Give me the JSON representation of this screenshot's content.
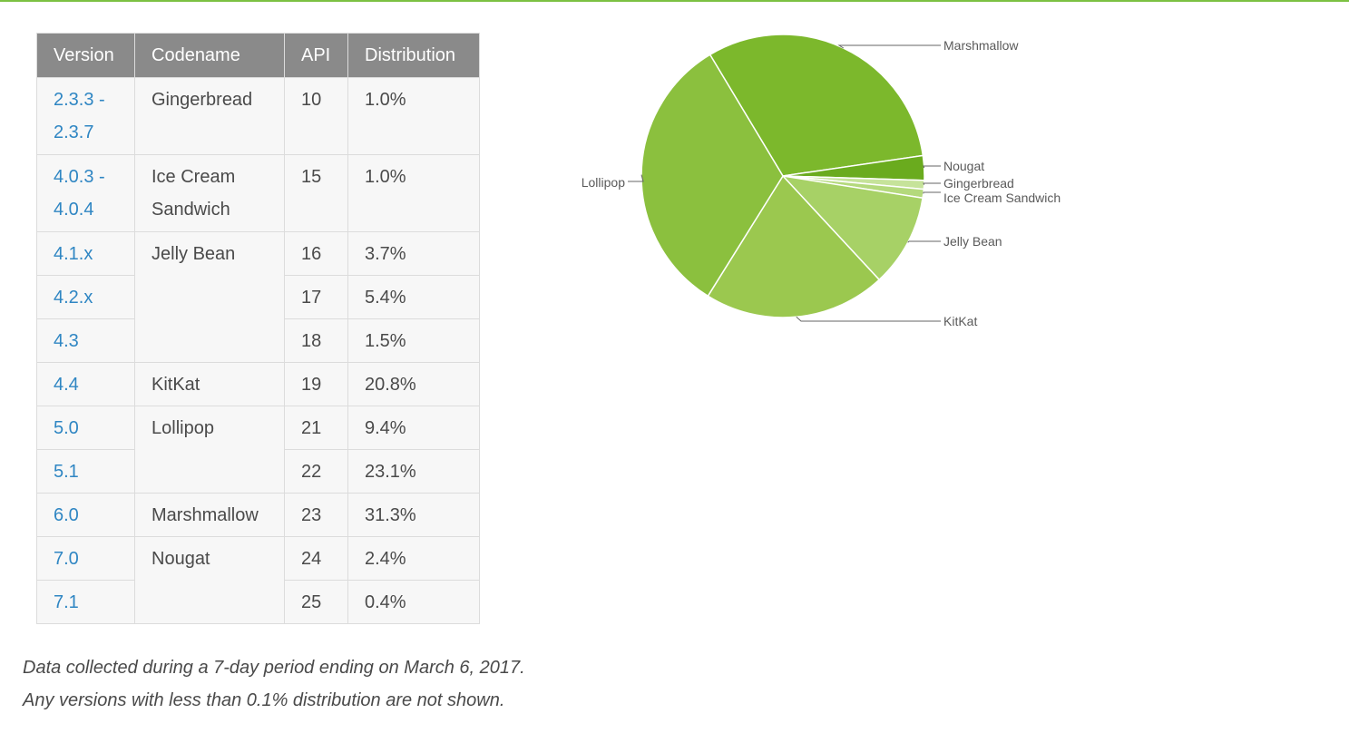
{
  "table": {
    "headers": {
      "version": "Version",
      "codename": "Codename",
      "api": "API",
      "distribution": "Distribution"
    },
    "rows": [
      {
        "version": [
          "2.3.3 -",
          "2.3.7"
        ],
        "codename": "Gingerbread",
        "api": "10",
        "dist": "1.0%"
      },
      {
        "version": [
          "4.0.3 -",
          "4.0.4"
        ],
        "codename": "Ice Cream Sandwich",
        "api": "15",
        "dist": "1.0%"
      },
      {
        "version": [
          "4.1.x"
        ],
        "codename": "Jelly Bean",
        "api": "16",
        "dist": "3.7%"
      },
      {
        "version": [
          "4.2.x"
        ],
        "codename": "",
        "api": "17",
        "dist": "5.4%"
      },
      {
        "version": [
          "4.3"
        ],
        "codename": "",
        "api": "18",
        "dist": "1.5%"
      },
      {
        "version": [
          "4.4"
        ],
        "codename": "KitKat",
        "api": "19",
        "dist": "20.8%"
      },
      {
        "version": [
          "5.0"
        ],
        "codename": "Lollipop",
        "api": "21",
        "dist": "9.4%"
      },
      {
        "version": [
          "5.1"
        ],
        "codename": "",
        "api": "22",
        "dist": "23.1%"
      },
      {
        "version": [
          "6.0"
        ],
        "codename": "Marshmallow",
        "api": "23",
        "dist": "31.3%"
      },
      {
        "version": [
          "7.0"
        ],
        "codename": "Nougat",
        "api": "24",
        "dist": "2.4%"
      },
      {
        "version": [
          "7.1"
        ],
        "codename": "",
        "api": "25",
        "dist": "0.4%"
      }
    ]
  },
  "notes": {
    "line1": "Data collected during a 7-day period ending on March 6, 2017.",
    "line2": "Any versions with less than 0.1% distribution are not shown."
  },
  "chart_data": {
    "type": "pie",
    "slices": [
      {
        "name": "Marshmallow",
        "value": 31.3,
        "color": "#7cb82c"
      },
      {
        "name": "Nougat",
        "value": 2.8,
        "color": "#6aab1e"
      },
      {
        "name": "Gingerbread",
        "value": 1.0,
        "color": "#c6e39a"
      },
      {
        "name": "Ice Cream Sandwich",
        "value": 1.0,
        "color": "#b4d97c"
      },
      {
        "name": "Jelly Bean",
        "value": 10.6,
        "color": "#a7d166"
      },
      {
        "name": "KitKat",
        "value": 20.8,
        "color": "#9bc84f"
      },
      {
        "name": "Lollipop",
        "value": 32.5,
        "color": "#8bc03e"
      }
    ]
  },
  "colors": {
    "accent": "#7cc142",
    "header_bg": "#8a8a8a",
    "link": "#2f86c3"
  }
}
